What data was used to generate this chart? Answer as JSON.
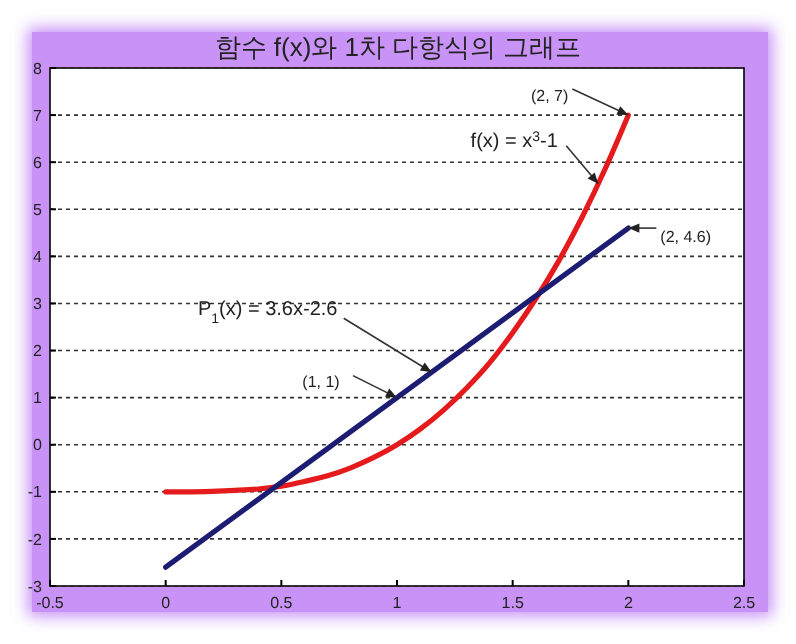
{
  "chart_data": {
    "type": "line",
    "title": "함수 f(x)와 1차 다항식의 그래프",
    "series": [
      {
        "name": null,
        "color": "#e41a1c",
        "x": [
          0,
          0.1,
          0.2,
          0.3,
          0.4,
          0.5,
          0.6,
          0.7,
          0.8,
          0.9,
          1,
          1.1,
          1.2,
          1.3,
          1.4,
          1.5,
          1.6,
          1.7,
          1.8,
          1.9,
          2
        ],
        "values": [
          -1,
          -1,
          -0.99,
          -0.97,
          -0.94,
          -0.88,
          -0.78,
          -0.66,
          -0.49,
          -0.27,
          0,
          0.33,
          0.73,
          1.2,
          1.74,
          2.38,
          3.1,
          3.91,
          4.83,
          5.86,
          7
        ]
      },
      {
        "name": null,
        "color": "#1c1c72",
        "x": [
          0,
          2
        ],
        "values": [
          -2.6,
          4.6
        ]
      }
    ],
    "xlim": [
      -0.5,
      2.5
    ],
    "xticks": [
      -0.5,
      0,
      0.5,
      1,
      1.5,
      2,
      2.5
    ],
    "ylim": [
      -3,
      8
    ],
    "yticks": [
      -3,
      -2,
      -1,
      0,
      1,
      2,
      3,
      4,
      5,
      6,
      7,
      8
    ],
    "grid": "y",
    "line_style": "solid",
    "marker": "none",
    "annotations": [
      {
        "text": "(2, 7)",
        "x": 2,
        "y": 7
      },
      {
        "text": "f(x) = x$^{3}$-1",
        "x": 1.87,
        "y": 5.54
      },
      {
        "text": "(2, 4.6)",
        "x": 2,
        "y": 4.6
      },
      {
        "text": "P$_{1}$(x) = 3.6x-2.6",
        "x": 1.15,
        "y": 1.54
      },
      {
        "text": "(1, 1)",
        "x": 1,
        "y": 1
      }
    ]
  }
}
